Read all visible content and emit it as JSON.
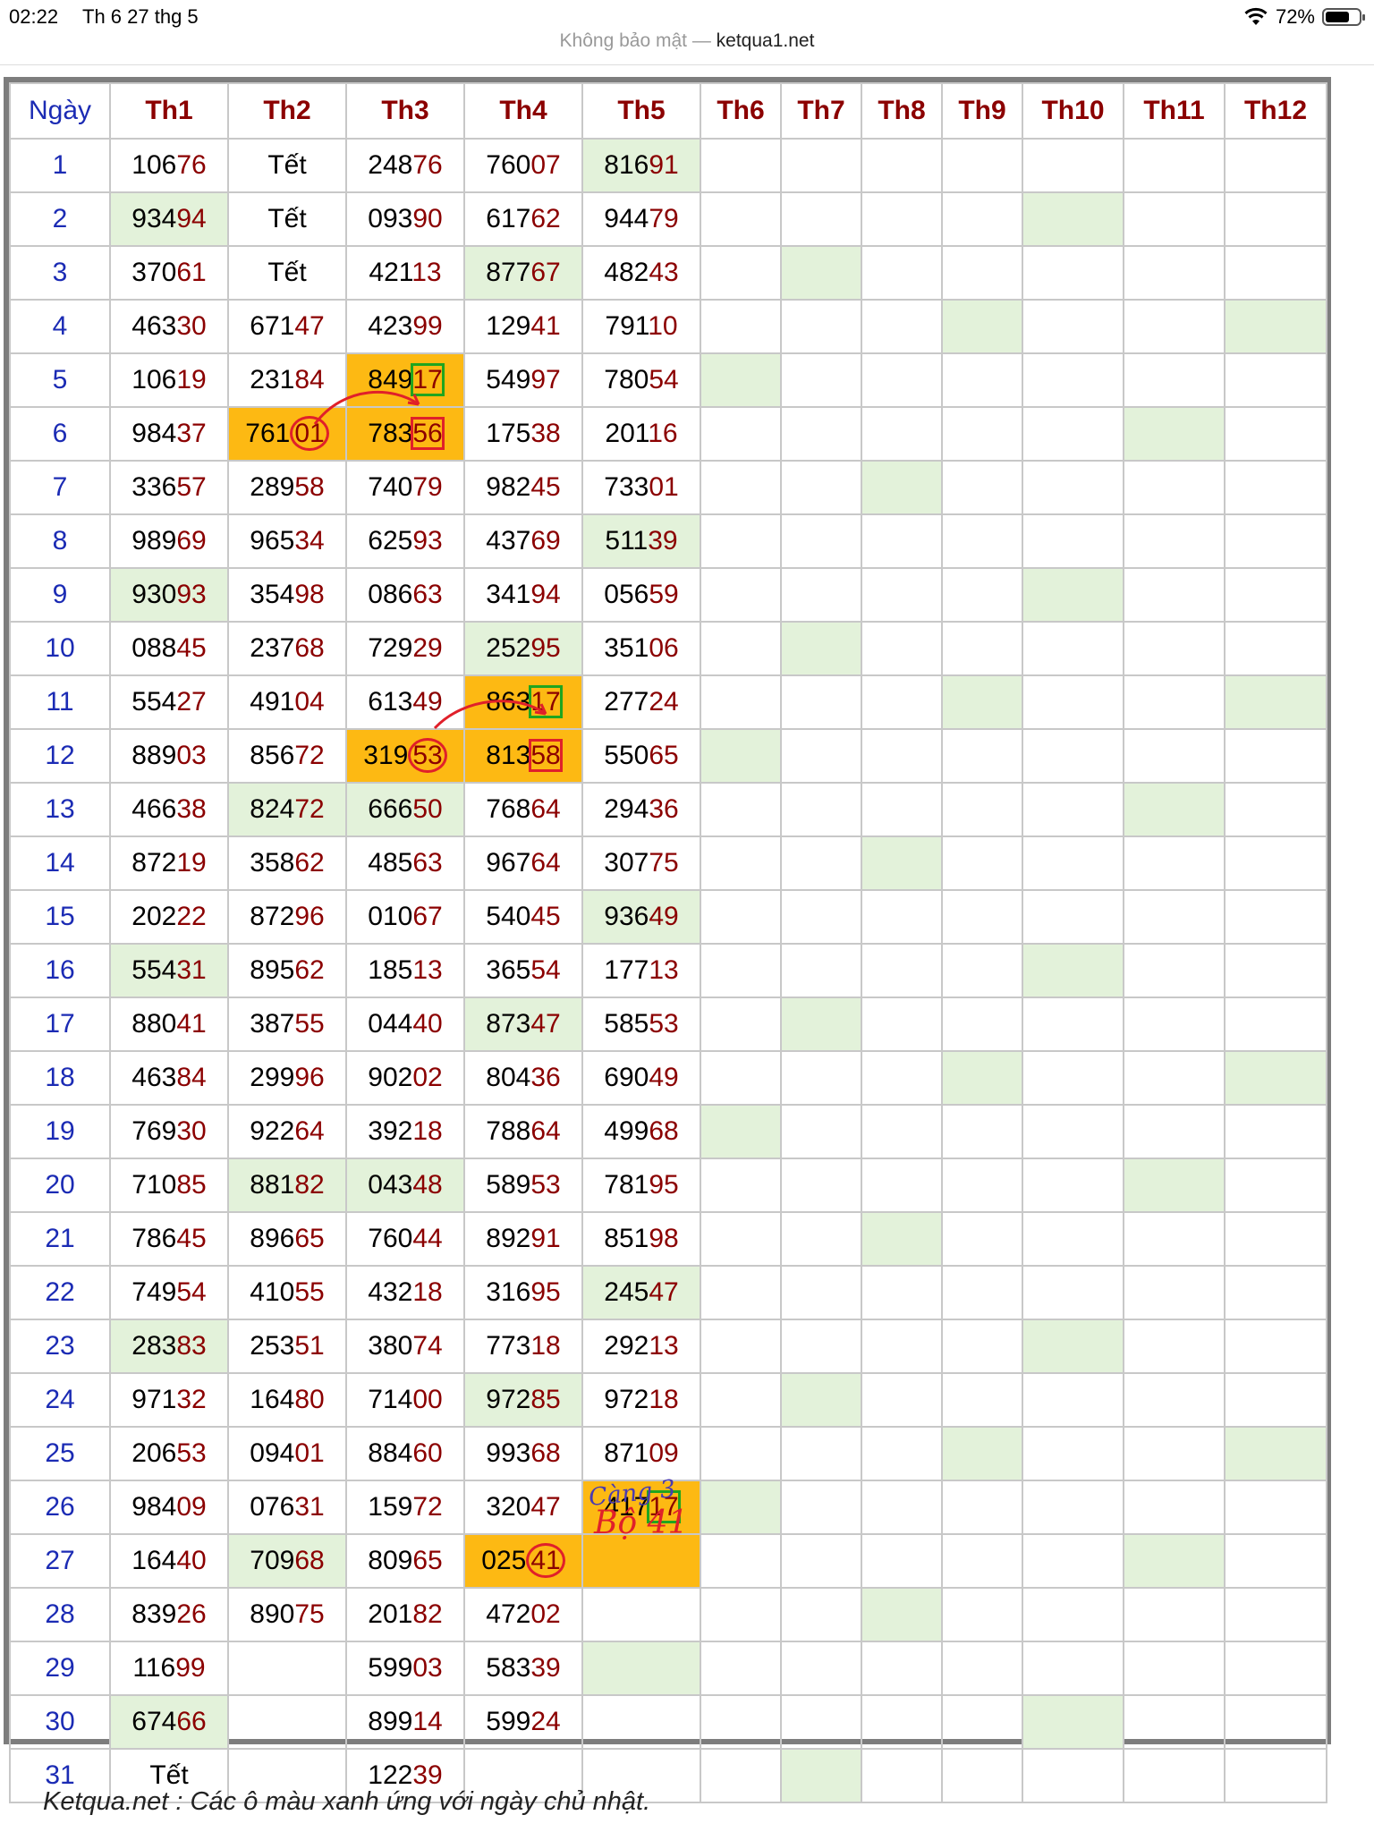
{
  "status": {
    "time": "02:22",
    "date": "Th 6 27 thg 5",
    "battery": "72%",
    "battery_level": 0.72
  },
  "url": {
    "security": "Không bảo mật —",
    "host": "ketqua1.net"
  },
  "table": {
    "headers": [
      "Ngày",
      "Th1",
      "Th2",
      "Th3",
      "Th4",
      "Th5",
      "Th6",
      "Th7",
      "Th8",
      "Th9",
      "Th10",
      "Th11",
      "Th12"
    ],
    "rows": [
      [
        "1",
        "10676",
        "Tết",
        "24876",
        "76007",
        "81691",
        "",
        "",
        "",
        "",
        "",
        "",
        ""
      ],
      [
        "2",
        "93494",
        "Tết",
        "09390",
        "61762",
        "94479",
        "",
        "",
        "",
        "",
        "",
        "",
        ""
      ],
      [
        "3",
        "37061",
        "Tết",
        "42113",
        "87767",
        "48243",
        "",
        "",
        "",
        "",
        "",
        "",
        ""
      ],
      [
        "4",
        "46330",
        "67147",
        "42399",
        "12941",
        "79110",
        "",
        "",
        "",
        "",
        "",
        "",
        ""
      ],
      [
        "5",
        "10619",
        "23184",
        "84917",
        "54997",
        "78054",
        "",
        "",
        "",
        "",
        "",
        "",
        ""
      ],
      [
        "6",
        "98437",
        "76101",
        "78356",
        "17538",
        "20116",
        "",
        "",
        "",
        "",
        "",
        "",
        ""
      ],
      [
        "7",
        "33657",
        "28958",
        "74079",
        "98245",
        "73301",
        "",
        "",
        "",
        "",
        "",
        "",
        ""
      ],
      [
        "8",
        "98969",
        "96534",
        "62593",
        "43769",
        "51139",
        "",
        "",
        "",
        "",
        "",
        "",
        ""
      ],
      [
        "9",
        "93093",
        "35498",
        "08663",
        "34194",
        "05659",
        "",
        "",
        "",
        "",
        "",
        "",
        ""
      ],
      [
        "10",
        "08845",
        "23768",
        "72929",
        "25295",
        "35106",
        "",
        "",
        "",
        "",
        "",
        "",
        ""
      ],
      [
        "11",
        "55427",
        "49104",
        "61349",
        "86317",
        "27724",
        "",
        "",
        "",
        "",
        "",
        "",
        ""
      ],
      [
        "12",
        "88903",
        "85672",
        "31953",
        "81358",
        "55065",
        "",
        "",
        "",
        "",
        "",
        "",
        ""
      ],
      [
        "13",
        "46638",
        "82472",
        "66650",
        "76864",
        "29436",
        "",
        "",
        "",
        "",
        "",
        "",
        ""
      ],
      [
        "14",
        "87219",
        "35862",
        "48563",
        "96764",
        "30775",
        "",
        "",
        "",
        "",
        "",
        "",
        ""
      ],
      [
        "15",
        "20222",
        "87296",
        "01067",
        "54045",
        "93649",
        "",
        "",
        "",
        "",
        "",
        "",
        ""
      ],
      [
        "16",
        "55431",
        "89562",
        "18513",
        "36554",
        "17713",
        "",
        "",
        "",
        "",
        "",
        "",
        ""
      ],
      [
        "17",
        "88041",
        "38755",
        "04440",
        "87347",
        "58553",
        "",
        "",
        "",
        "",
        "",
        "",
        ""
      ],
      [
        "18",
        "46384",
        "29996",
        "90202",
        "80436",
        "69049",
        "",
        "",
        "",
        "",
        "",
        "",
        ""
      ],
      [
        "19",
        "76930",
        "92264",
        "39218",
        "78864",
        "49968",
        "",
        "",
        "",
        "",
        "",
        "",
        ""
      ],
      [
        "20",
        "71085",
        "88182",
        "04348",
        "58953",
        "78195",
        "",
        "",
        "",
        "",
        "",
        "",
        ""
      ],
      [
        "21",
        "78645",
        "89665",
        "76044",
        "89291",
        "85198",
        "",
        "",
        "",
        "",
        "",
        "",
        ""
      ],
      [
        "22",
        "74954",
        "41055",
        "43218",
        "31695",
        "24547",
        "",
        "",
        "",
        "",
        "",
        "",
        ""
      ],
      [
        "23",
        "28383",
        "25351",
        "38074",
        "77318",
        "29213",
        "",
        "",
        "",
        "",
        "",
        "",
        ""
      ],
      [
        "24",
        "97132",
        "16480",
        "71400",
        "97285",
        "97218",
        "",
        "",
        "",
        "",
        "",
        "",
        ""
      ],
      [
        "25",
        "20653",
        "09401",
        "88460",
        "99368",
        "87109",
        "",
        "",
        "",
        "",
        "",
        "",
        ""
      ],
      [
        "26",
        "98409",
        "07631",
        "15972",
        "32047",
        "41717",
        "",
        "",
        "",
        "",
        "",
        "",
        ""
      ],
      [
        "27",
        "16440",
        "70968",
        "80965",
        "02541",
        "",
        "",
        "",
        "",
        "",
        "",
        "",
        ""
      ],
      [
        "28",
        "83926",
        "89075",
        "20182",
        "47202",
        "",
        "",
        "",
        "",
        "",
        "",
        "",
        ""
      ],
      [
        "29",
        "11699",
        "",
        "59903",
        "58339",
        "",
        "",
        "",
        "",
        "",
        "",
        "",
        ""
      ],
      [
        "30",
        "67466",
        "",
        "89914",
        "59924",
        "",
        "",
        "",
        "",
        "",
        "",
        "",
        ""
      ],
      [
        "31",
        "Tết",
        "",
        "12239",
        "",
        "",
        "",
        "",
        "",
        "",
        "",
        "",
        ""
      ]
    ],
    "green_cells": [
      [
        1,
        5
      ],
      [
        2,
        1
      ],
      [
        2,
        10
      ],
      [
        3,
        4
      ],
      [
        3,
        7
      ],
      [
        4,
        9
      ],
      [
        4,
        12
      ],
      [
        5,
        6
      ],
      [
        6,
        11
      ],
      [
        7,
        8
      ],
      [
        8,
        5
      ],
      [
        9,
        1
      ],
      [
        9,
        10
      ],
      [
        10,
        4
      ],
      [
        10,
        7
      ],
      [
        11,
        9
      ],
      [
        11,
        12
      ],
      [
        12,
        6
      ],
      [
        13,
        2
      ],
      [
        13,
        3
      ],
      [
        13,
        11
      ],
      [
        14,
        8
      ],
      [
        15,
        5
      ],
      [
        16,
        1
      ],
      [
        16,
        10
      ],
      [
        17,
        4
      ],
      [
        17,
        7
      ],
      [
        18,
        9
      ],
      [
        18,
        12
      ],
      [
        19,
        6
      ],
      [
        20,
        2
      ],
      [
        20,
        3
      ],
      [
        20,
        11
      ],
      [
        21,
        8
      ],
      [
        22,
        5
      ],
      [
        23,
        1
      ],
      [
        23,
        10
      ],
      [
        24,
        4
      ],
      [
        24,
        7
      ],
      [
        25,
        9
      ],
      [
        25,
        12
      ],
      [
        26,
        6
      ],
      [
        27,
        2
      ],
      [
        27,
        11
      ],
      [
        28,
        8
      ],
      [
        29,
        5
      ],
      [
        30,
        1
      ],
      [
        30,
        10
      ],
      [
        31,
        7
      ]
    ],
    "orange_cells": [
      [
        5,
        3
      ],
      [
        6,
        2
      ],
      [
        6,
        3
      ],
      [
        11,
        4
      ],
      [
        12,
        3
      ],
      [
        12,
        4
      ],
      [
        26,
        5
      ],
      [
        27,
        4
      ],
      [
        27,
        5
      ]
    ],
    "green_boxed": [
      [
        5,
        3
      ],
      [
        11,
        4
      ],
      [
        26,
        5
      ]
    ],
    "red_boxed": [
      [
        6,
        3
      ],
      [
        12,
        4
      ]
    ],
    "red_circled": [
      [
        6,
        2
      ],
      [
        12,
        3
      ],
      [
        27,
        4
      ]
    ],
    "colors": {
      "day": "#1b2bb4",
      "tail": "#8b0000",
      "green": "#e3f2da",
      "orange": "#fdb913",
      "annotation": "#e0202a",
      "pen": "#4a3bb0"
    }
  },
  "annotations": {
    "cang": "Càng 3",
    "bo": "Bộ 41"
  },
  "footer": "Ketqua.net : Các ô màu xanh ứng với ngày chủ nhật."
}
